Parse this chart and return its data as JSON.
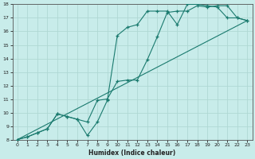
{
  "xlabel": "Humidex (Indice chaleur)",
  "ylabel": "",
  "bg_color": "#c8ecea",
  "grid_color": "#afd8d4",
  "line_color": "#1a7a6e",
  "xlim": [
    -0.5,
    23.5
  ],
  "ylim": [
    8,
    18
  ],
  "xticks": [
    0,
    1,
    2,
    3,
    4,
    5,
    6,
    7,
    8,
    9,
    10,
    11,
    12,
    13,
    14,
    15,
    16,
    17,
    18,
    19,
    20,
    21,
    22,
    23
  ],
  "yticks": [
    8,
    9,
    10,
    11,
    12,
    13,
    14,
    15,
    16,
    17,
    18
  ],
  "line1_x": [
    0,
    1,
    2,
    3,
    4,
    5,
    6,
    7,
    8,
    9,
    10,
    11,
    12,
    13,
    14,
    15,
    16,
    17,
    18,
    19,
    20,
    21,
    22,
    23
  ],
  "line1_y": [
    8.0,
    8.2,
    8.5,
    8.8,
    9.9,
    9.7,
    9.5,
    9.3,
    10.9,
    11.0,
    12.3,
    12.4,
    12.4,
    13.9,
    15.6,
    17.4,
    17.5,
    17.5,
    17.9,
    17.8,
    17.9,
    17.9,
    17.0,
    16.8
  ],
  "line2_x": [
    0,
    1,
    2,
    3,
    4,
    5,
    6,
    7,
    8,
    9,
    10,
    11,
    12,
    13,
    14,
    15,
    16,
    17,
    18,
    19,
    20,
    21,
    22,
    23
  ],
  "line2_y": [
    8.0,
    8.2,
    8.5,
    8.8,
    9.9,
    9.7,
    9.5,
    8.3,
    9.3,
    10.9,
    15.7,
    16.3,
    16.5,
    17.5,
    17.5,
    17.5,
    16.5,
    18.0,
    18.0,
    17.9,
    17.8,
    17.0,
    17.0,
    16.8
  ],
  "line3_x": [
    0,
    23
  ],
  "line3_y": [
    8.0,
    16.8
  ]
}
